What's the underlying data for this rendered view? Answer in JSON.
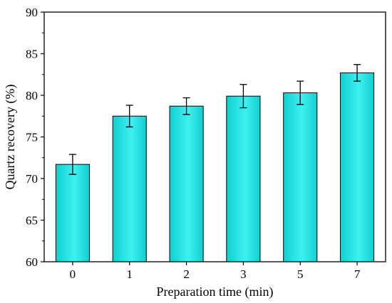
{
  "chart_data": {
    "type": "bar",
    "categories": [
      "0",
      "1",
      "2",
      "3",
      "5",
      "7"
    ],
    "values": [
      71.7,
      77.5,
      78.7,
      79.9,
      80.3,
      82.7
    ],
    "error": [
      1.2,
      1.3,
      1.0,
      1.4,
      1.4,
      1.0
    ],
    "xlabel": "Preparation time (min)",
    "ylabel": "Quartz recovery (%)",
    "ylim": [
      60,
      90
    ],
    "yticks": [
      60,
      65,
      70,
      75,
      80,
      85,
      90
    ],
    "grid": false,
    "bar_color": "#11d8d8",
    "bar_edge_color": "#000000"
  }
}
